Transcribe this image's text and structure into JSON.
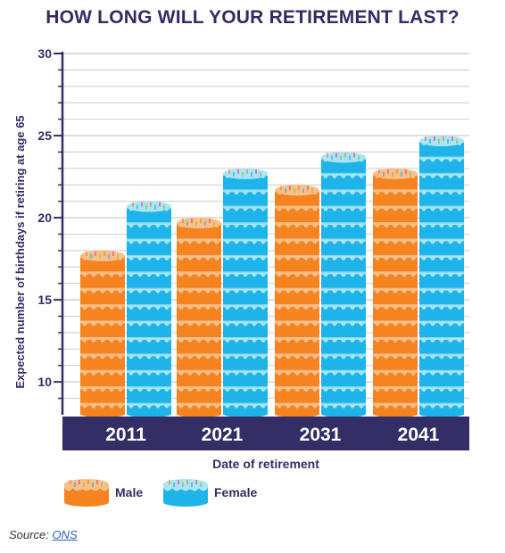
{
  "title": "HOW LONG WILL YOUR RETIREMENT LAST?",
  "source": {
    "label": "Source:",
    "link_text": "ONS"
  },
  "colors": {
    "male": "#f5831f",
    "male_light": "#fbc08a",
    "female": "#1eb4ea",
    "female_light": "#a9e4f7",
    "axis_band": "#342e66",
    "title": "#322d63",
    "grid": "#d0d0d6"
  },
  "chart_data": {
    "type": "bar",
    "categories": [
      "2011",
      "2021",
      "2031",
      "2041"
    ],
    "series": [
      {
        "name": "Male",
        "values": [
          18,
          20,
          22,
          23
        ]
      },
      {
        "name": "Female",
        "values": [
          21,
          23,
          24,
          25
        ]
      }
    ],
    "xlabel": "Date of retirement",
    "ylabel": "Expected number of  birthdays if retiring at age 65",
    "ylim": [
      8,
      30
    ],
    "yticks": [
      10,
      15,
      20,
      25,
      30
    ],
    "grid": true,
    "legend_position": "bottom-left"
  }
}
